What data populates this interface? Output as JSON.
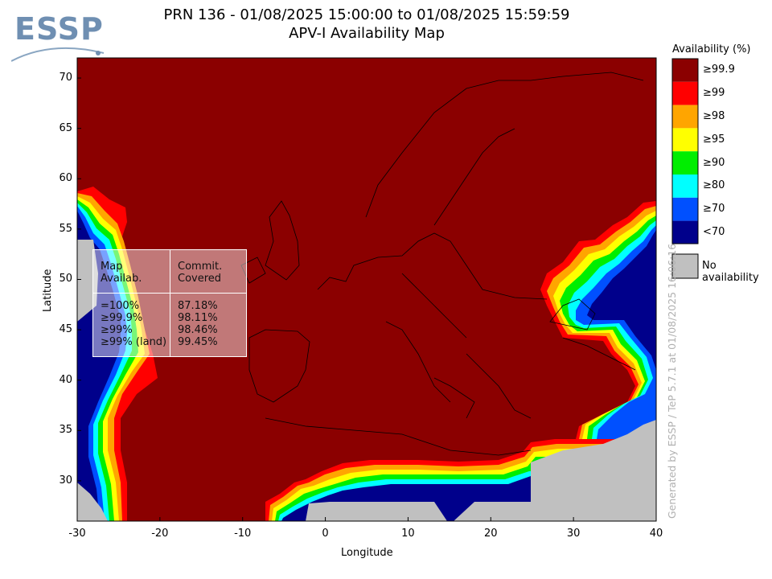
{
  "logo": {
    "text": "ESSP"
  },
  "title": {
    "line1": "PRN 136 - 01/08/2025 15:00:00 to 01/08/2025 15:59:59",
    "line2": "APV-I Availability Map"
  },
  "legend": {
    "title": "Availability (%)",
    "items": [
      {
        "label": "≥99.9",
        "color": "#8b0000"
      },
      {
        "label": "≥99",
        "color": "#ff0000"
      },
      {
        "label": "≥98",
        "color": "#ffa500"
      },
      {
        "label": "≥95",
        "color": "#ffff00"
      },
      {
        "label": "≥90",
        "color": "#00ee00"
      },
      {
        "label": "≥80",
        "color": "#00ffff"
      },
      {
        "label": "≥70",
        "color": "#0050ff"
      },
      {
        "label": "<70",
        "color": "#00008b"
      }
    ],
    "no_availability": {
      "label": "No availability",
      "color": "#c0c0c0"
    }
  },
  "side_note": "Generated by ESSP / TeP 5.7.1 at 01/08/2025 16:06:16",
  "stats_box": {
    "col1_header": "Map\nAvailab.",
    "col2_header": "Commit.\nCovered",
    "rows": [
      {
        "level": "=100%",
        "covered": "87.18%"
      },
      {
        "level": "≥99.9%",
        "covered": "98.11%"
      },
      {
        "level": "≥99%",
        "covered": "98.46%"
      },
      {
        "level": "≥99% (land)",
        "covered": "99.45%"
      }
    ]
  },
  "chart_data": {
    "type": "heatmap",
    "title": "PRN 136 - 01/08/2025 15:00:00 to 01/08/2025 15:59:59",
    "subtitle": "APV-I Availability Map",
    "xlabel": "Longitude",
    "ylabel": "Latitude",
    "xlim": [
      -30,
      40
    ],
    "ylim": [
      26,
      72
    ],
    "xticks": [
      -30,
      -20,
      -10,
      0,
      10,
      20,
      30,
      40
    ],
    "yticks": [
      30,
      35,
      40,
      45,
      50,
      55,
      60,
      65,
      70
    ],
    "background_level": "≥99.9",
    "regions": [
      {
        "level": "No availability",
        "polygon": [
          [
            -30,
            54
          ],
          [
            -28,
            54
          ],
          [
            -27,
            50
          ],
          [
            -27,
            46
          ],
          [
            -30,
            45
          ]
        ]
      },
      {
        "level": "No availability",
        "polygon": [
          [
            -30,
            31
          ],
          [
            -28,
            29
          ],
          [
            -26,
            27
          ],
          [
            -25,
            26
          ],
          [
            -30,
            26
          ]
        ]
      },
      {
        "level": "No availability",
        "polygon": [
          [
            -3,
            26
          ],
          [
            -3,
            28
          ],
          [
            8,
            28
          ],
          [
            13,
            26
          ]
        ]
      },
      {
        "level": "No availability",
        "polygon": [
          [
            16,
            26
          ],
          [
            20,
            28
          ],
          [
            25,
            28
          ],
          [
            25,
            26
          ]
        ]
      },
      {
        "level": "No availability",
        "polygon": [
          [
            25,
            26
          ],
          [
            25,
            32
          ],
          [
            29,
            33
          ],
          [
            33,
            34
          ],
          [
            36,
            34
          ],
          [
            40,
            36
          ],
          [
            40,
            26
          ]
        ]
      },
      {
        "level": "<70",
        "polygon": [
          [
            33,
            52
          ],
          [
            35,
            54
          ],
          [
            40,
            55
          ],
          [
            40,
            36
          ],
          [
            36,
            35
          ],
          [
            33,
            36
          ],
          [
            34,
            40
          ],
          [
            35,
            43
          ],
          [
            33,
            45
          ],
          [
            32,
            48
          ]
        ]
      },
      {
        "level": "<70",
        "polygon": [
          [
            -30,
            44
          ],
          [
            -27,
            46
          ],
          [
            -27,
            50
          ],
          [
            -28,
            54
          ],
          [
            -30,
            54
          ],
          [
            -30,
            58
          ],
          [
            -28,
            56
          ],
          [
            -26,
            52
          ],
          [
            -25,
            48
          ],
          [
            -26,
            42
          ],
          [
            -27,
            37
          ],
          [
            -28,
            33
          ],
          [
            -30,
            31
          ]
        ]
      },
      {
        "level": "<70",
        "polygon": [
          [
            -3,
            28
          ],
          [
            0,
            29
          ],
          [
            6,
            29
          ],
          [
            10,
            30
          ],
          [
            15,
            30
          ],
          [
            20,
            30
          ],
          [
            25,
            31
          ],
          [
            25,
            28
          ],
          [
            20,
            28
          ],
          [
            16,
            26
          ],
          [
            13,
            26
          ],
          [
            8,
            28
          ]
        ]
      }
    ],
    "stats": [
      {
        "map_availability": "=100%",
        "commitment_covered": "87.18%"
      },
      {
        "map_availability": "≥99.9%",
        "commitment_covered": "98.11%"
      },
      {
        "map_availability": "≥99%",
        "commitment_covered": "98.46%"
      },
      {
        "map_availability": "≥99% (land)",
        "commitment_covered": "99.45%"
      }
    ]
  }
}
